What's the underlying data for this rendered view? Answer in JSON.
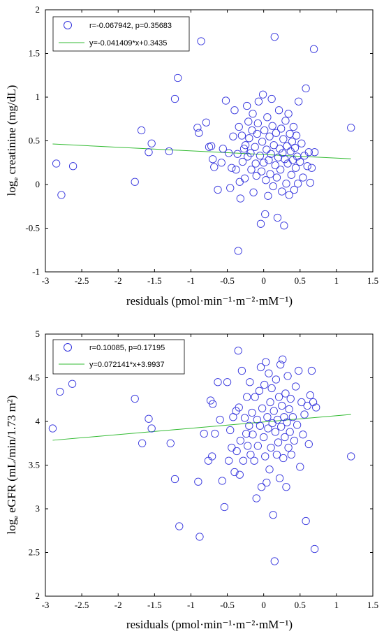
{
  "chart_data": [
    {
      "type": "scatter",
      "xlabel": "residuals (pmol·min⁻¹·m⁻²·mM⁻¹)",
      "ylabel": "log_e creatinine (mg/dL)",
      "ylabel_parts": {
        "pre": "log",
        "sub": "e",
        "post": " creatinine (mg/dL)"
      },
      "xlim": [
        -3,
        1.5
      ],
      "ylim": [
        -1,
        2
      ],
      "xticks": [
        "-3",
        "-2.5",
        "-2",
        "-1.5",
        "-1",
        "-0.5",
        "0",
        "0.5",
        "1",
        "1.5"
      ],
      "xtick_values": [
        -3,
        -2.5,
        -2,
        -1.5,
        -1,
        -0.5,
        0,
        0.5,
        1,
        1.5
      ],
      "yticks": [
        "-1",
        "-0.5",
        "0",
        "0.5",
        "1",
        "1.5",
        "2"
      ],
      "ytick_values": [
        -1,
        -0.5,
        0,
        0.5,
        1,
        1.5,
        2
      ],
      "legend": {
        "placement": "top-left",
        "points_label": "r=-0.067942, p=0.35683",
        "line_label": "y=-0.041409*x+0.3435"
      },
      "fit": {
        "slope": -0.041409,
        "intercept": 0.3435,
        "x_range": [
          -2.9,
          1.2
        ]
      },
      "colors": {
        "points": "#3333dd",
        "fit": "#33bb33"
      },
      "points": [
        [
          -2.85,
          0.24
        ],
        [
          -2.78,
          -0.12
        ],
        [
          -2.62,
          0.21
        ],
        [
          -1.77,
          0.03
        ],
        [
          -1.68,
          0.62
        ],
        [
          -1.58,
          0.37
        ],
        [
          -1.54,
          0.47
        ],
        [
          -1.3,
          0.38
        ],
        [
          -1.22,
          0.98
        ],
        [
          -1.18,
          1.22
        ],
        [
          -0.91,
          0.65
        ],
        [
          -0.89,
          0.59
        ],
        [
          -0.86,
          1.64
        ],
        [
          -0.79,
          0.71
        ],
        [
          -0.75,
          0.43
        ],
        [
          -0.72,
          0.44
        ],
        [
          -0.7,
          0.29
        ],
        [
          -0.68,
          0.2
        ],
        [
          -0.63,
          -0.06
        ],
        [
          -0.58,
          0.25
        ],
        [
          -0.56,
          0.41
        ],
        [
          -0.52,
          0.96
        ],
        [
          -0.48,
          0.36
        ],
        [
          -0.46,
          -0.04
        ],
        [
          -0.44,
          0.19
        ],
        [
          -0.42,
          0.55
        ],
        [
          -0.4,
          0.85
        ],
        [
          -0.38,
          0.17
        ],
        [
          -0.36,
          0.35
        ],
        [
          -0.35,
          -0.76
        ],
        [
          -0.34,
          0.66
        ],
        [
          -0.33,
          0.03
        ],
        [
          -0.32,
          -0.16
        ],
        [
          -0.3,
          0.56
        ],
        [
          -0.29,
          0.26
        ],
        [
          -0.27,
          0.41
        ],
        [
          -0.26,
          0.07
        ],
        [
          -0.25,
          0.45
        ],
        [
          -0.23,
          0.9
        ],
        [
          -0.22,
          0.32
        ],
        [
          -0.21,
          0.72
        ],
        [
          -0.2,
          0.53
        ],
        [
          -0.18,
          0.36
        ],
        [
          -0.17,
          0.17
        ],
        [
          -0.16,
          0.62
        ],
        [
          -0.15,
          0.81
        ],
        [
          -0.14,
          -0.09
        ],
        [
          -0.12,
          0.43
        ],
        [
          -0.11,
          0.24
        ],
        [
          -0.1,
          0.1
        ],
        [
          -0.09,
          0.58
        ],
        [
          -0.08,
          0.7
        ],
        [
          -0.07,
          0.95
        ],
        [
          -0.05,
          0.33
        ],
        [
          -0.04,
          -0.45
        ],
        [
          -0.03,
          0.15
        ],
        [
          -0.02,
          0.49
        ],
        [
          -0.01,
          1.03
        ],
        [
          0.0,
          0.25
        ],
        [
          0.01,
          0.62
        ],
        [
          0.02,
          -0.34
        ],
        [
          0.03,
          0.05
        ],
        [
          0.04,
          0.4
        ],
        [
          0.05,
          0.77
        ],
        [
          0.06,
          -0.13
        ],
        [
          0.07,
          0.28
        ],
        [
          0.08,
          0.55
        ],
        [
          0.09,
          0.12
        ],
        [
          0.1,
          0.35
        ],
        [
          0.11,
          0.98
        ],
        [
          0.12,
          0.67
        ],
        [
          0.13,
          -0.02
        ],
        [
          0.14,
          0.45
        ],
        [
          0.15,
          1.69
        ],
        [
          0.16,
          0.22
        ],
        [
          0.17,
          0.59
        ],
        [
          0.18,
          0.08
        ],
        [
          0.19,
          -0.38
        ],
        [
          0.2,
          0.31
        ],
        [
          0.21,
          0.85
        ],
        [
          0.22,
          0.41
        ],
        [
          0.23,
          0.17
        ],
        [
          0.24,
          0.64
        ],
        [
          0.25,
          -0.08
        ],
        [
          0.26,
          0.36
        ],
        [
          0.27,
          0.52
        ],
        [
          0.28,
          -0.47
        ],
        [
          0.29,
          0.29
        ],
        [
          0.3,
          0.73
        ],
        [
          0.31,
          0.01
        ],
        [
          0.32,
          0.44
        ],
        [
          0.33,
          0.24
        ],
        [
          0.34,
          0.81
        ],
        [
          0.35,
          -0.12
        ],
        [
          0.36,
          0.58
        ],
        [
          0.37,
          0.38
        ],
        [
          0.38,
          0.11
        ],
        [
          0.39,
          0.49
        ],
        [
          0.4,
          0.28
        ],
        [
          0.41,
          0.66
        ],
        [
          0.42,
          -0.06
        ],
        [
          0.43,
          0.42
        ],
        [
          0.44,
          0.19
        ],
        [
          0.45,
          0.56
        ],
        [
          0.46,
          0.32
        ],
        [
          0.47,
          0.01
        ],
        [
          0.48,
          0.95
        ],
        [
          0.5,
          0.26
        ],
        [
          0.52,
          0.47
        ],
        [
          0.54,
          0.08
        ],
        [
          0.56,
          0.33
        ],
        [
          0.58,
          1.1
        ],
        [
          0.6,
          0.21
        ],
        [
          0.62,
          0.37
        ],
        [
          0.64,
          0.02
        ],
        [
          0.66,
          0.19
        ],
        [
          0.69,
          1.55
        ],
        [
          0.7,
          0.37
        ],
        [
          1.2,
          0.65
        ]
      ]
    },
    {
      "type": "scatter",
      "xlabel": "residuals (pmol·min⁻¹·m⁻²·mM⁻¹)",
      "ylabel": "log_e eGFR (mL/min/1.73 m²)",
      "ylabel_parts": {
        "pre": "log",
        "sub": "e",
        "post": " eGFR (mL/min/1.73 m²)"
      },
      "xlim": [
        -3,
        1.5
      ],
      "ylim": [
        2,
        5
      ],
      "xticks": [
        "-3",
        "-2.5",
        "-2",
        "-1.5",
        "-1",
        "-0.5",
        "0",
        "0.5",
        "1",
        "1.5"
      ],
      "xtick_values": [
        -3,
        -2.5,
        -2,
        -1.5,
        -1,
        -0.5,
        0,
        0.5,
        1,
        1.5
      ],
      "yticks": [
        "2",
        "2.5",
        "3",
        "3.5",
        "4",
        "4.5",
        "5"
      ],
      "ytick_values": [
        2,
        2.5,
        3,
        3.5,
        4,
        4.5,
        5
      ],
      "legend": {
        "placement": "top-left",
        "points_label": "r=0.10085, p=0.17195",
        "line_label": "y=0.072141*x+3.9937"
      },
      "fit": {
        "slope": 0.072141,
        "intercept": 3.9937,
        "x_range": [
          -2.9,
          1.2
        ]
      },
      "colors": {
        "points": "#3333dd",
        "fit": "#33bb33"
      },
      "points": [
        [
          -2.9,
          3.92
        ],
        [
          -2.8,
          4.34
        ],
        [
          -2.63,
          4.43
        ],
        [
          -1.77,
          4.26
        ],
        [
          -1.67,
          3.75
        ],
        [
          -1.58,
          4.03
        ],
        [
          -1.54,
          3.92
        ],
        [
          -1.28,
          3.75
        ],
        [
          -1.22,
          3.34
        ],
        [
          -1.16,
          2.8
        ],
        [
          -0.9,
          3.31
        ],
        [
          -0.88,
          2.68
        ],
        [
          -0.82,
          3.86
        ],
        [
          -0.76,
          3.55
        ],
        [
          -0.73,
          4.24
        ],
        [
          -0.71,
          3.6
        ],
        [
          -0.7,
          4.2
        ],
        [
          -0.67,
          3.86
        ],
        [
          -0.63,
          4.45
        ],
        [
          -0.6,
          4.02
        ],
        [
          -0.57,
          3.32
        ],
        [
          -0.54,
          3.02
        ],
        [
          -0.5,
          4.45
        ],
        [
          -0.48,
          3.55
        ],
        [
          -0.46,
          3.9
        ],
        [
          -0.44,
          3.7
        ],
        [
          -0.42,
          4.05
        ],
        [
          -0.4,
          3.42
        ],
        [
          -0.38,
          4.12
        ],
        [
          -0.37,
          3.66
        ],
        [
          -0.35,
          4.81
        ],
        [
          -0.34,
          4.16
        ],
        [
          -0.33,
          3.39
        ],
        [
          -0.32,
          3.78
        ],
        [
          -0.3,
          4.58
        ],
        [
          -0.28,
          3.55
        ],
        [
          -0.26,
          4.04
        ],
        [
          -0.24,
          3.86
        ],
        [
          -0.23,
          4.28
        ],
        [
          -0.22,
          3.72
        ],
        [
          -0.2,
          3.95
        ],
        [
          -0.19,
          4.45
        ],
        [
          -0.18,
          3.62
        ],
        [
          -0.16,
          4.1
        ],
        [
          -0.15,
          3.85
        ],
        [
          -0.13,
          3.55
        ],
        [
          -0.12,
          4.28
        ],
        [
          -0.1,
          3.12
        ],
        [
          -0.09,
          4.02
        ],
        [
          -0.08,
          3.72
        ],
        [
          -0.06,
          4.35
        ],
        [
          -0.05,
          3.95
        ],
        [
          -0.04,
          4.62
        ],
        [
          -0.03,
          3.25
        ],
        [
          -0.02,
          4.15
        ],
        [
          0.0,
          3.82
        ],
        [
          0.01,
          4.42
        ],
        [
          0.02,
          3.6
        ],
        [
          0.03,
          4.68
        ],
        [
          0.04,
          3.3
        ],
        [
          0.05,
          4.05
        ],
        [
          0.06,
          3.92
        ],
        [
          0.07,
          4.55
        ],
        [
          0.08,
          3.45
        ],
        [
          0.09,
          4.22
        ],
        [
          0.1,
          3.7
        ],
        [
          0.11,
          4.38
        ],
        [
          0.12,
          3.98
        ],
        [
          0.13,
          2.93
        ],
        [
          0.14,
          4.12
        ],
        [
          0.15,
          2.4
        ],
        [
          0.16,
          3.88
        ],
        [
          0.17,
          4.48
        ],
        [
          0.18,
          3.62
        ],
        [
          0.19,
          4.02
        ],
        [
          0.2,
          3.76
        ],
        [
          0.21,
          4.28
        ],
        [
          0.22,
          3.35
        ],
        [
          0.23,
          4.65
        ],
        [
          0.24,
          3.94
        ],
        [
          0.25,
          4.18
        ],
        [
          0.26,
          4.71
        ],
        [
          0.27,
          3.58
        ],
        [
          0.28,
          4.05
        ],
        [
          0.29,
          3.82
        ],
        [
          0.3,
          4.32
        ],
        [
          0.31,
          3.25
        ],
        [
          0.32,
          3.99
        ],
        [
          0.33,
          4.52
        ],
        [
          0.34,
          3.7
        ],
        [
          0.35,
          4.14
        ],
        [
          0.36,
          3.88
        ],
        [
          0.37,
          4.26
        ],
        [
          0.38,
          3.62
        ],
        [
          0.4,
          4.05
        ],
        [
          0.42,
          3.78
        ],
        [
          0.44,
          4.4
        ],
        [
          0.46,
          3.96
        ],
        [
          0.48,
          4.58
        ],
        [
          0.5,
          3.48
        ],
        [
          0.52,
          4.22
        ],
        [
          0.54,
          3.85
        ],
        [
          0.56,
          4.08
        ],
        [
          0.58,
          2.86
        ],
        [
          0.6,
          4.18
        ],
        [
          0.62,
          3.74
        ],
        [
          0.64,
          4.3
        ],
        [
          0.66,
          4.58
        ],
        [
          0.68,
          4.22
        ],
        [
          0.7,
          2.54
        ],
        [
          0.72,
          4.16
        ],
        [
          1.2,
          3.6
        ]
      ]
    }
  ]
}
